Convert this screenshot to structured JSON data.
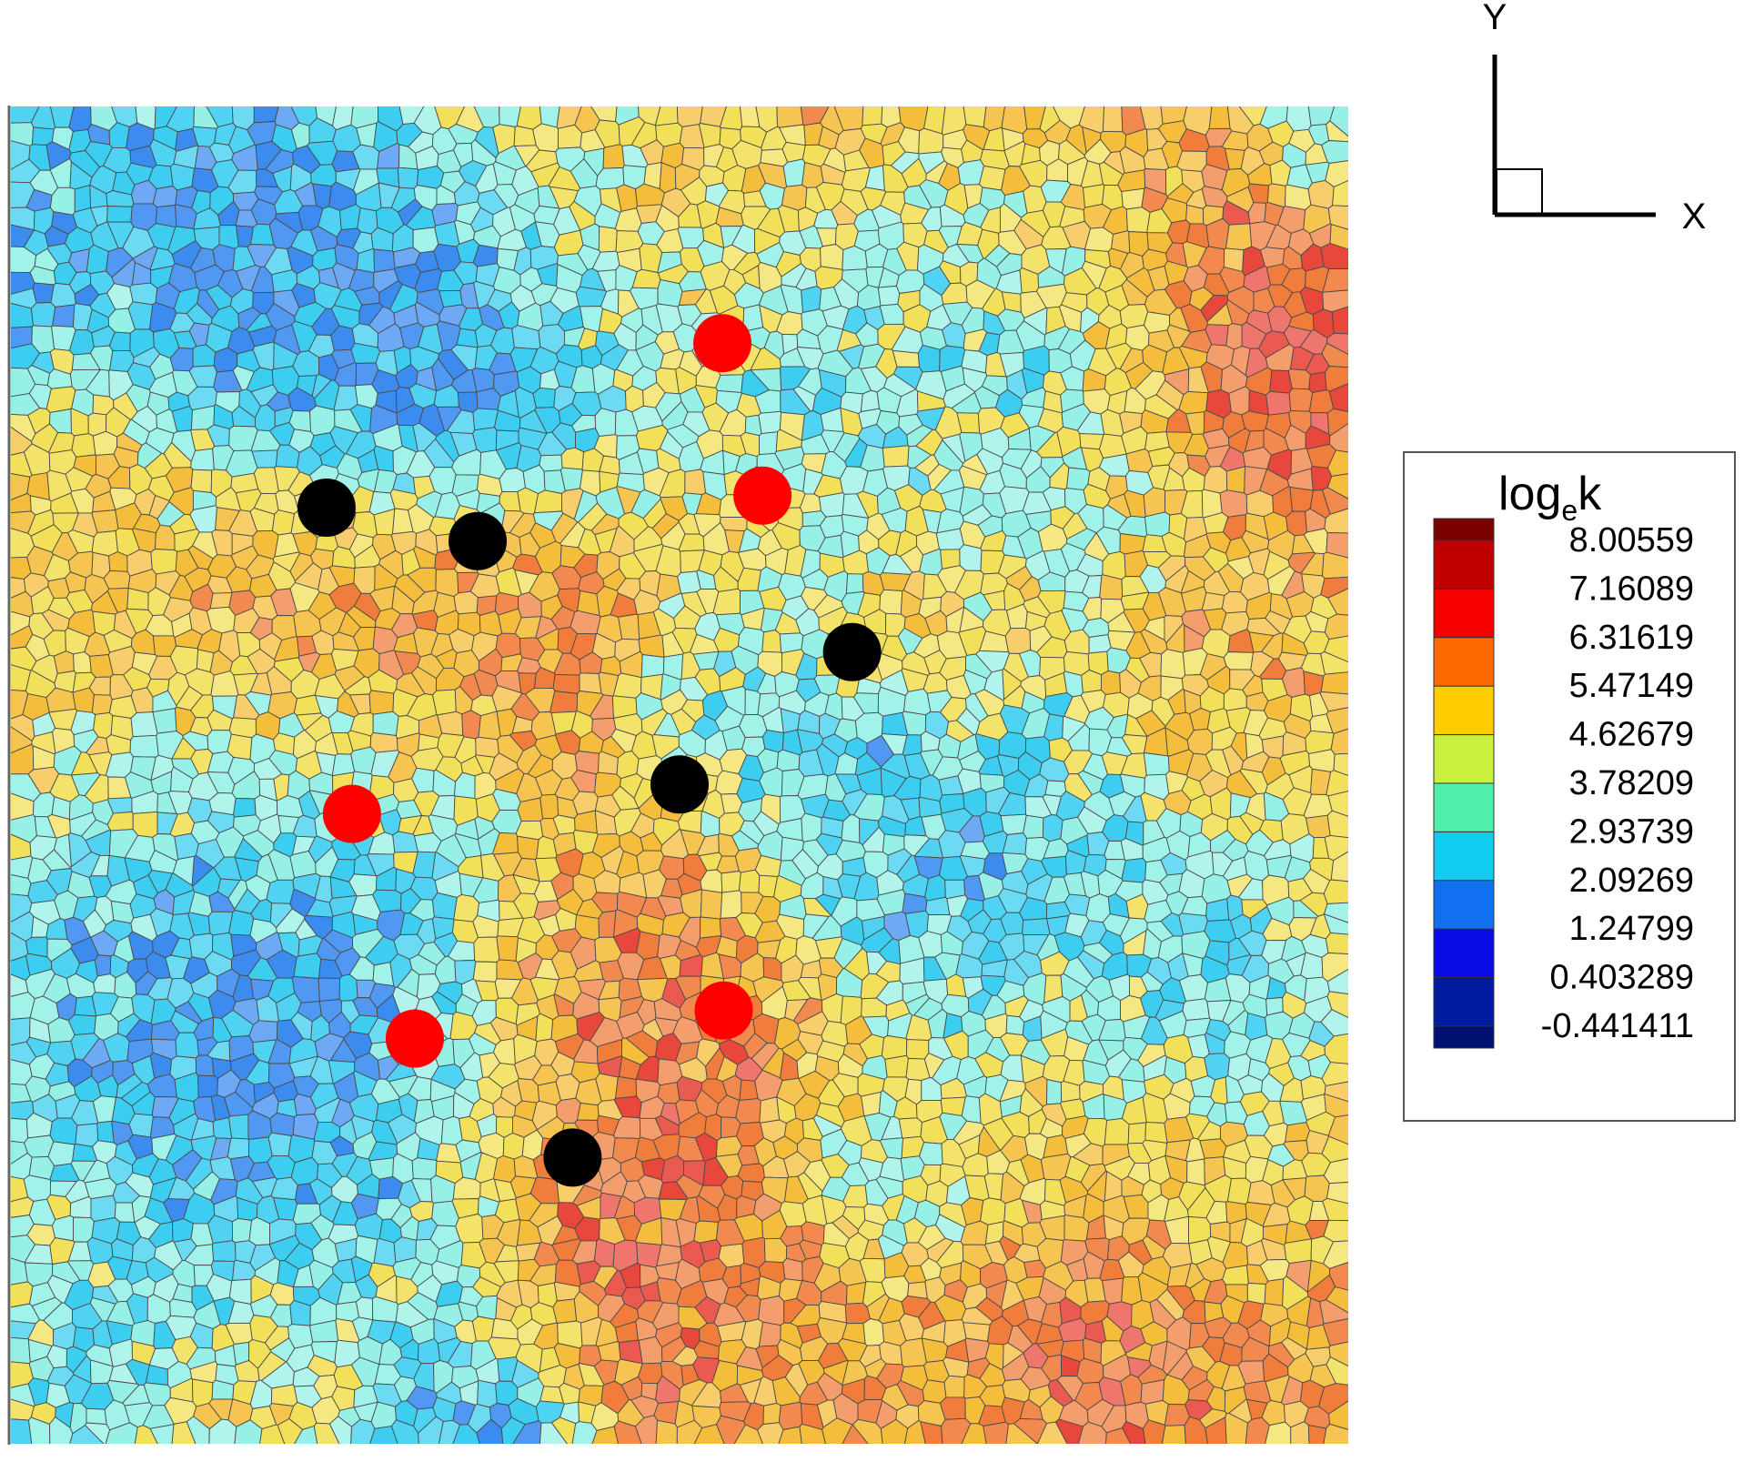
{
  "chart_data": {
    "type": "heatmap",
    "title": "",
    "colorbar": {
      "title_base": "log",
      "title_sub": "e",
      "title_tail": "k",
      "levels": [
        "8.00559",
        "7.16089",
        "6.31619",
        "5.47149",
        "4.62679",
        "3.78209",
        "2.93739",
        "2.09269",
        "1.24799",
        "0.403289",
        "-0.441411"
      ],
      "colors": [
        "#7a0000",
        "#c00000",
        "#f60000",
        "#ff6a00",
        "#ffcc00",
        "#c8f03c",
        "#50f0aa",
        "#10cdf0",
        "#1070f0",
        "#0a0ae6",
        "#001aa0",
        "#001070"
      ]
    },
    "axes": {
      "x_label": "X",
      "y_label": "Y"
    },
    "field_blobs": [
      {
        "x": 0.12,
        "y": 0.15,
        "r": 0.14,
        "v": 0.9
      },
      {
        "x": 0.3,
        "y": 0.18,
        "r": 0.09,
        "v": 1.2
      },
      {
        "x": 0.35,
        "y": 0.17,
        "r": 0.07,
        "v": 1.0
      },
      {
        "x": 0.2,
        "y": 0.68,
        "r": 0.13,
        "v": 0.5
      },
      {
        "x": 0.06,
        "y": 0.63,
        "r": 0.05,
        "v": 2.6
      },
      {
        "x": 0.25,
        "y": 0.52,
        "r": 0.07,
        "v": 2.8
      },
      {
        "x": 0.14,
        "y": 0.54,
        "r": 0.06,
        "v": 3.0
      },
      {
        "x": 0.68,
        "y": 0.55,
        "r": 0.08,
        "v": 1.1
      },
      {
        "x": 0.83,
        "y": 0.54,
        "r": 0.11,
        "v": 2.9
      },
      {
        "x": 0.9,
        "y": 0.68,
        "r": 0.06,
        "v": 2.5
      },
      {
        "x": 0.54,
        "y": 0.45,
        "r": 0.05,
        "v": 2.6
      },
      {
        "x": 0.6,
        "y": 0.2,
        "r": 0.07,
        "v": 3.0
      },
      {
        "x": 0.72,
        "y": 0.22,
        "r": 0.1,
        "v": 2.8
      },
      {
        "x": 0.65,
        "y": 0.78,
        "r": 0.05,
        "v": 3.0
      },
      {
        "x": 0.34,
        "y": 0.99,
        "r": 0.05,
        "v": 1.2
      },
      {
        "x": 0.05,
        "y": 0.95,
        "r": 0.05,
        "v": 2.5
      },
      {
        "x": 0.98,
        "y": 0.03,
        "r": 0.03,
        "v": 2.6
      },
      {
        "x": 0.95,
        "y": 0.18,
        "r": 0.07,
        "v": 7.0
      },
      {
        "x": 0.47,
        "y": 0.68,
        "r": 0.09,
        "v": 6.9
      },
      {
        "x": 0.2,
        "y": 0.38,
        "r": 0.1,
        "v": 6.5
      },
      {
        "x": 0.05,
        "y": 0.27,
        "r": 0.05,
        "v": 6.4
      },
      {
        "x": 0.35,
        "y": 0.4,
        "r": 0.07,
        "v": 6.2
      },
      {
        "x": 0.47,
        "y": 0.86,
        "r": 0.06,
        "v": 6.6
      },
      {
        "x": 0.9,
        "y": 0.45,
        "r": 0.05,
        "v": 6.2
      },
      {
        "x": 0.82,
        "y": 0.92,
        "r": 0.05,
        "v": 6.2
      },
      {
        "x": 0.4,
        "y": 0.1,
        "r": 0.07,
        "v": 4.4
      },
      {
        "x": 0.47,
        "y": 0.15,
        "r": 0.05,
        "v": 4.4
      },
      {
        "x": 0.03,
        "y": 0.45,
        "r": 0.05,
        "v": 4.5
      },
      {
        "x": 0.9,
        "y": 0.82,
        "r": 0.05,
        "v": 4.5
      },
      {
        "x": 0.7,
        "y": 0.38,
        "r": 0.05,
        "v": 4.9
      }
    ],
    "markers": [
      {
        "color": "#ff0000",
        "x": 0.532,
        "y": 0.177
      },
      {
        "color": "#ff0000",
        "x": 0.562,
        "y": 0.291
      },
      {
        "color": "#ff0000",
        "x": 0.255,
        "y": 0.529
      },
      {
        "color": "#ff0000",
        "x": 0.533,
        "y": 0.676
      },
      {
        "color": "#ff0000",
        "x": 0.302,
        "y": 0.697
      },
      {
        "color": "#000000",
        "x": 0.236,
        "y": 0.3
      },
      {
        "color": "#000000",
        "x": 0.349,
        "y": 0.325
      },
      {
        "color": "#000000",
        "x": 0.629,
        "y": 0.408
      },
      {
        "color": "#000000",
        "x": 0.5,
        "y": 0.507
      },
      {
        "color": "#000000",
        "x": 0.42,
        "y": 0.786
      }
    ]
  }
}
